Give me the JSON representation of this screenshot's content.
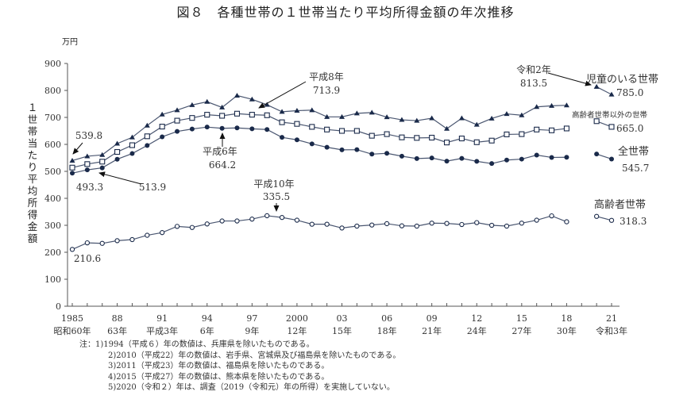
{
  "chart_data": {
    "type": "line",
    "title": "図８　各種世帯の１世帯当たり平均所得金額の年次推移",
    "unit": "万円",
    "ylabel": "１世帯当たり平均所得金額",
    "ylim": [
      0,
      900
    ],
    "yticks": [
      0,
      100,
      200,
      300,
      400,
      500,
      600,
      700,
      800,
      900
    ],
    "grid": false,
    "xticks": [
      {
        "year": 1985,
        "label": "1985",
        "era": "昭和60年"
      },
      {
        "year": 1988,
        "label": "88",
        "era": "63年"
      },
      {
        "year": 1991,
        "label": "91",
        "era": "平成3年"
      },
      {
        "year": 1994,
        "label": "94",
        "era": "6年"
      },
      {
        "year": 1997,
        "label": "97",
        "era": "9年"
      },
      {
        "year": 2000,
        "label": "2000",
        "era": "12年"
      },
      {
        "year": 2003,
        "label": "03",
        "era": "15年"
      },
      {
        "year": 2006,
        "label": "06",
        "era": "18年"
      },
      {
        "year": 2009,
        "label": "09",
        "era": "21年"
      },
      {
        "year": 2012,
        "label": "12",
        "era": "24年"
      },
      {
        "year": 2015,
        "label": "15",
        "era": "27年"
      },
      {
        "year": 2018,
        "label": "18",
        "era": "30年"
      },
      {
        "year": 2021,
        "label": "21",
        "era": "令和3年"
      }
    ],
    "xlim": [
      1985,
      2021
    ],
    "x": [
      1985,
      1986,
      1987,
      1988,
      1989,
      1990,
      1991,
      1992,
      1993,
      1994,
      1995,
      1996,
      1997,
      1998,
      1999,
      2000,
      2001,
      2002,
      2003,
      2004,
      2005,
      2006,
      2007,
      2008,
      2009,
      2010,
      2011,
      2012,
      2013,
      2014,
      2015,
      2016,
      2017,
      2018
    ],
    "x2": [
      2020,
      2021
    ],
    "series": [
      {
        "name": "児童のいる世帯",
        "marker": "triangle-filled",
        "last_label": "785.0",
        "values": [
          539.8,
          556,
          561,
          603,
          626,
          670,
          711,
          727,
          746,
          758,
          737,
          781,
          767,
          747,
          721,
          725,
          727,
          702,
          702,
          715,
          718,
          701,
          691,
          688,
          697,
          658,
          697,
          673,
          696,
          713,
          708,
          739,
          743,
          745
        ],
        "values2": [
          813.5,
          785.0
        ]
      },
      {
        "name": "高齢者世帯以外の世帯",
        "marker": "square-open",
        "last_label": "665.0",
        "values": [
          513.9,
          527,
          536,
          572,
          597,
          630,
          666,
          688,
          698,
          710,
          706,
          713.9,
          710,
          708,
          682,
          676,
          665,
          655,
          650,
          650,
          632,
          638,
          626,
          624,
          625,
          607,
          622,
          608,
          614,
          637,
          638,
          655,
          652,
          659
        ],
        "values2": [
          686,
          665.0
        ]
      },
      {
        "name": "全世帯",
        "marker": "circle-filled",
        "last_label": "545.7",
        "values": [
          493.3,
          505.6,
          513,
          545,
          566,
          596,
          628,
          648,
          657,
          664.2,
          659.6,
          661,
          657.7,
          655.2,
          626,
          616.9,
          602,
          589.3,
          579.7,
          580.4,
          563.8,
          566.8,
          556.2,
          547.5,
          549.6,
          538,
          548.2,
          537.2,
          528.9,
          541.9,
          545.4,
          560.2,
          551.6,
          552.3
        ],
        "values2": [
          564.3,
          545.7
        ]
      },
      {
        "name": "高齢者世帯",
        "marker": "circle-open",
        "last_label": "318.3",
        "values": [
          210.6,
          235,
          233,
          243,
          247,
          263,
          273,
          296,
          292,
          305,
          316,
          316,
          323,
          335.5,
          329,
          319,
          304,
          304,
          290,
          297,
          301,
          306,
          298,
          297,
          308,
          307,
          303,
          310,
          300,
          297,
          308,
          319,
          335,
          313
        ],
        "values2": [
          333,
          318.3
        ]
      }
    ],
    "annotations": [
      {
        "id": "a1",
        "text": "539.8"
      },
      {
        "id": "a2",
        "text": "493.3"
      },
      {
        "id": "a3",
        "text": "513.9"
      },
      {
        "id": "a4",
        "era": "平成6年",
        "text": "664.2"
      },
      {
        "id": "a5",
        "era": "平成8年",
        "text": "713.9"
      },
      {
        "id": "a6",
        "era": "平成10年",
        "text": "335.5"
      },
      {
        "id": "a7",
        "text": "210.6"
      },
      {
        "id": "a8",
        "era": "令和2年",
        "text": "813.5"
      }
    ],
    "color": "#1a2a4a"
  },
  "notes": [
    "注：1)1994（平成６）年の数値は、兵庫県を除いたものである。",
    "2)2010（平成22）年の数値は、岩手県、宮城県及び福島県を除いたものである。",
    "3)2011（平成23）年の数値は、福島県を除いたものである。",
    "4)2015（平成27）年の数値は、熊本県を除いたものである。",
    "5)2020（令和２）年は、調査（2019（令和元）年の所得）を実施していない。"
  ]
}
